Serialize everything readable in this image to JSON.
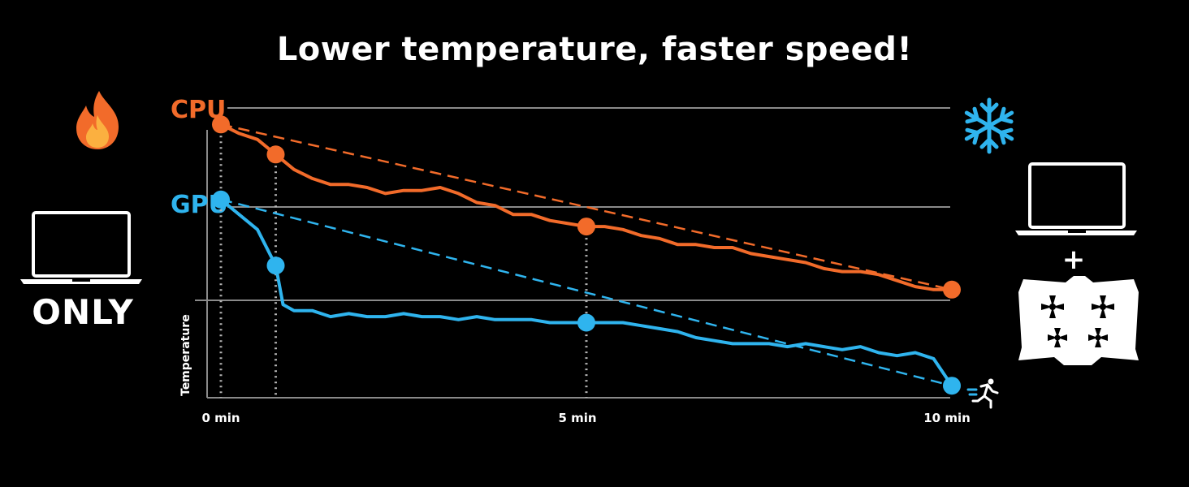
{
  "title": "Lower temperature, faster speed!",
  "left_label": "ONLY",
  "plus": "+",
  "icons": {
    "left_top": "flame-icon",
    "left": "laptop-icon",
    "right_top": "snowflake-icon",
    "right_laptop": "laptop-icon",
    "right_pad": "cooling-pad-icon",
    "runner": "runner-icon"
  },
  "colors": {
    "cpu": "#f26b2a",
    "gpu": "#2fb4ee",
    "grid": "#8a8a8a",
    "background": "#000000"
  },
  "chart_data": {
    "type": "line",
    "title": "Lower temperature, faster speed!",
    "xlabel": "",
    "ylabel": "Temperature",
    "x_tick_labels": [
      "0 min",
      "5 min",
      "10 min"
    ],
    "xlim": [
      0,
      10
    ],
    "ylim": [
      0,
      100
    ],
    "grid": true,
    "series": [
      {
        "name": "CPU",
        "color": "#f26b2a",
        "x": [
          0,
          0.25,
          0.5,
          0.75,
          1.0,
          1.25,
          1.5,
          1.75,
          2.0,
          2.25,
          2.5,
          2.75,
          3.0,
          3.25,
          3.5,
          3.75,
          4.0,
          4.25,
          4.5,
          4.75,
          5.0,
          5.25,
          5.5,
          5.75,
          6.0,
          6.25,
          6.5,
          6.75,
          7.0,
          7.25,
          7.5,
          7.75,
          8.0,
          8.25,
          8.5,
          8.75,
          9.0,
          9.25,
          9.5,
          9.75,
          10.0
        ],
        "values": [
          91,
          88,
          86,
          81,
          76,
          73,
          71,
          71,
          70,
          68,
          69,
          69,
          70,
          68,
          65,
          64,
          61,
          61,
          59,
          58,
          57,
          57,
          56,
          54,
          53,
          51,
          51,
          50,
          50,
          48,
          47,
          46,
          45,
          43,
          42,
          42,
          41,
          39,
          37,
          36,
          36
        ],
        "highlight_points": [
          {
            "x": 0,
            "value": 91
          },
          {
            "x": 0.75,
            "value": 81
          },
          {
            "x": 5.0,
            "value": 57
          },
          {
            "x": 10.0,
            "value": 36
          }
        ],
        "trend": {
          "from": [
            0,
            91
          ],
          "to": [
            10,
            36
          ]
        }
      },
      {
        "name": "GPU",
        "color": "#2fb4ee",
        "x": [
          0,
          0.25,
          0.5,
          0.75,
          0.85,
          1.0,
          1.25,
          1.5,
          1.75,
          2.0,
          2.25,
          2.5,
          2.75,
          3.0,
          3.25,
          3.5,
          3.75,
          4.0,
          4.25,
          4.5,
          4.75,
          5.0,
          5.25,
          5.5,
          5.75,
          6.0,
          6.25,
          6.5,
          6.75,
          7.0,
          7.25,
          7.5,
          7.75,
          8.0,
          8.25,
          8.5,
          8.75,
          9.0,
          9.25,
          9.5,
          9.75,
          10.0
        ],
        "values": [
          66,
          61,
          56,
          44,
          31,
          29,
          29,
          27,
          28,
          27,
          27,
          28,
          27,
          27,
          26,
          27,
          26,
          26,
          26,
          25,
          25,
          25,
          25,
          25,
          24,
          23,
          22,
          20,
          19,
          18,
          18,
          18,
          17,
          18,
          17,
          16,
          17,
          15,
          14,
          15,
          13,
          4
        ],
        "highlight_points": [
          {
            "x": 0,
            "value": 66
          },
          {
            "x": 0.75,
            "value": 44
          },
          {
            "x": 5.0,
            "value": 25
          },
          {
            "x": 10.0,
            "value": 4
          }
        ],
        "trend": {
          "from": [
            0,
            66
          ],
          "to": [
            10,
            4
          ]
        }
      }
    ]
  }
}
